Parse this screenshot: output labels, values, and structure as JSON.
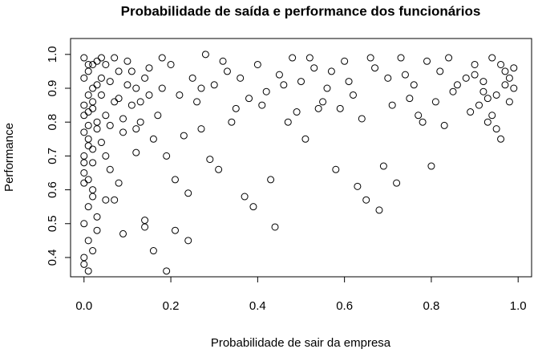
{
  "chart_data": {
    "type": "scatter",
    "title": "Probabilidade de saída e performance dos funcionários",
    "x_label": "Probabilidade de sair da empresa",
    "y_label": "Performance",
    "xlim": [
      -0.031,
      1.031
    ],
    "ylim": [
      0.343,
      1.047
    ],
    "xticks": [
      {
        "value": 0,
        "label": "0.0"
      },
      0.2,
      0.4,
      0.6,
      0.8,
      {
        "value": 1,
        "label": "1.0"
      }
    ],
    "yticks": [
      0.4,
      0.5,
      0.6,
      0.7,
      0.8,
      0.9,
      {
        "value": 1,
        "label": "1.0"
      }
    ],
    "color": "#000000",
    "series": [
      {
        "name": "funcionários",
        "color": "#000000",
        "x": [
          0.0,
          0.01,
          0.02,
          0.0,
          0.03,
          0.01,
          0.05,
          0.02,
          0.0,
          0.04,
          0.06,
          0.01,
          0.03,
          0.07,
          0.0,
          0.02,
          0.08,
          0.04,
          0.01,
          0.09,
          0.0,
          0.01,
          0.02,
          0.0,
          0.01,
          0.03,
          0.0,
          0.02,
          0.01,
          0.0,
          0.1,
          0.12,
          0.05,
          0.11,
          0.13,
          0.06,
          0.14,
          0.08,
          0.15,
          0.03,
          0.16,
          0.18,
          0.02,
          0.04,
          0.07,
          0.09,
          0.01,
          0.05,
          0.1,
          0.12,
          0.2,
          0.22,
          0.25,
          0.17,
          0.19,
          0.23,
          0.28,
          0.21,
          0.26,
          0.24,
          0.3,
          0.32,
          0.35,
          0.27,
          0.29,
          0.33,
          0.38,
          0.31,
          0.36,
          0.34,
          0.4,
          0.42,
          0.45,
          0.37,
          0.39,
          0.43,
          0.48,
          0.41,
          0.46,
          0.44,
          0.5,
          0.52,
          0.55,
          0.47,
          0.49,
          0.53,
          0.58,
          0.51,
          0.56,
          0.54,
          0.6,
          0.62,
          0.65,
          0.57,
          0.59,
          0.63,
          0.68,
          0.61,
          0.66,
          0.64,
          0.7,
          0.72,
          0.75,
          0.67,
          0.69,
          0.73,
          0.78,
          0.71,
          0.76,
          0.74,
          0.8,
          0.82,
          0.85,
          0.77,
          0.79,
          0.83,
          0.88,
          0.81,
          0.86,
          0.84,
          0.9,
          0.92,
          0.95,
          0.97,
          0.99,
          0.91,
          0.93,
          0.96,
          0.98,
          0.94,
          0.89,
          0.96,
          0.98,
          0.92,
          0.94,
          0.97,
          0.9,
          0.99,
          0.95,
          0.93,
          0.0,
          0.01,
          0.0,
          0.02,
          0.01,
          0.0,
          0.03,
          0.02,
          0.04,
          0.06,
          0.08,
          0.11,
          0.13,
          0.15,
          0.18,
          0.07,
          0.12,
          0.14,
          0.16,
          0.19,
          0.24,
          0.27,
          0.21,
          0.14,
          0.09,
          0.03,
          0.05,
          0.01,
          0.02,
          0.0
        ],
        "values": [
          0.99,
          0.95,
          0.9,
          0.85,
          0.8,
          0.75,
          0.97,
          0.72,
          0.7,
          0.88,
          0.92,
          0.83,
          0.78,
          0.86,
          0.65,
          0.6,
          0.95,
          0.74,
          0.55,
          0.81,
          0.5,
          0.45,
          0.42,
          0.38,
          0.36,
          0.48,
          0.4,
          0.58,
          0.63,
          0.68,
          0.98,
          0.9,
          0.7,
          0.85,
          0.8,
          0.66,
          0.93,
          0.62,
          0.88,
          0.52,
          0.75,
          0.99,
          0.86,
          0.93,
          0.99,
          0.77,
          0.97,
          0.82,
          0.91,
          0.71,
          0.97,
          0.88,
          0.93,
          0.82,
          0.7,
          0.76,
          1.0,
          0.63,
          0.86,
          0.59,
          0.91,
          0.98,
          0.84,
          0.78,
          0.69,
          0.95,
          0.87,
          0.66,
          0.93,
          0.8,
          0.97,
          0.89,
          0.94,
          0.58,
          0.55,
          0.63,
          0.99,
          0.85,
          0.91,
          0.49,
          0.92,
          0.99,
          0.86,
          0.8,
          0.83,
          0.96,
          0.66,
          0.75,
          0.9,
          0.84,
          0.98,
          0.88,
          0.57,
          0.95,
          0.84,
          0.61,
          0.54,
          0.92,
          0.99,
          0.81,
          0.93,
          0.62,
          0.87,
          0.96,
          0.67,
          0.99,
          0.8,
          0.85,
          0.91,
          0.94,
          0.67,
          0.95,
          0.89,
          0.82,
          0.98,
          0.79,
          0.93,
          0.86,
          0.91,
          0.99,
          0.97,
          0.92,
          0.88,
          0.95,
          0.9,
          0.85,
          0.8,
          0.75,
          0.93,
          0.99,
          0.83,
          0.97,
          0.86,
          0.89,
          0.82,
          0.91,
          0.94,
          0.96,
          0.78,
          0.87,
          0.77,
          0.88,
          0.93,
          0.97,
          0.73,
          0.82,
          0.91,
          0.68,
          0.99,
          0.79,
          0.87,
          0.95,
          0.86,
          0.96,
          0.9,
          0.57,
          0.78,
          0.49,
          0.42,
          0.36,
          0.45,
          0.9,
          0.48,
          0.51,
          0.47,
          0.98,
          0.57,
          0.79,
          0.84,
          0.62
        ]
      }
    ]
  }
}
